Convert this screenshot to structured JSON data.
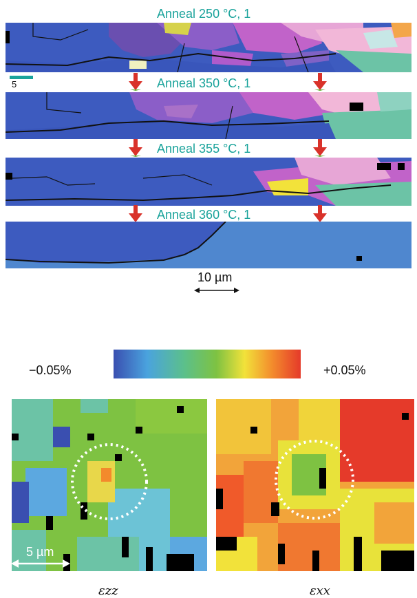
{
  "anneal_steps": [
    {
      "label": "Anneal 250 °C, 1"
    },
    {
      "label": "Anneal 350 °C, 1"
    },
    {
      "label": "Anneal 355 °C, 1"
    },
    {
      "label": "Anneal 360 °C, 1"
    }
  ],
  "small_scale_label": "5",
  "ebsd_scale_label": "10 µm",
  "colorbar": {
    "min_label": "−0.05%",
    "max_label": "+0.05%",
    "colors": [
      "#3a4fb0",
      "#4aa3de",
      "#5cc08a",
      "#7ec242",
      "#f2e23a",
      "#f38a2c",
      "#e53a2a"
    ]
  },
  "strain_maps": [
    {
      "label": "εzz"
    },
    {
      "label": "εxx"
    }
  ],
  "strain_scale_label": "5 µm",
  "colors": {
    "teal_text": "#1aa39b",
    "arrow_red": "#d9322a",
    "arrow_green": "#6bb33a",
    "grain_blue": "#3d5bbf",
    "grain_light_blue": "#4f87cf"
  }
}
